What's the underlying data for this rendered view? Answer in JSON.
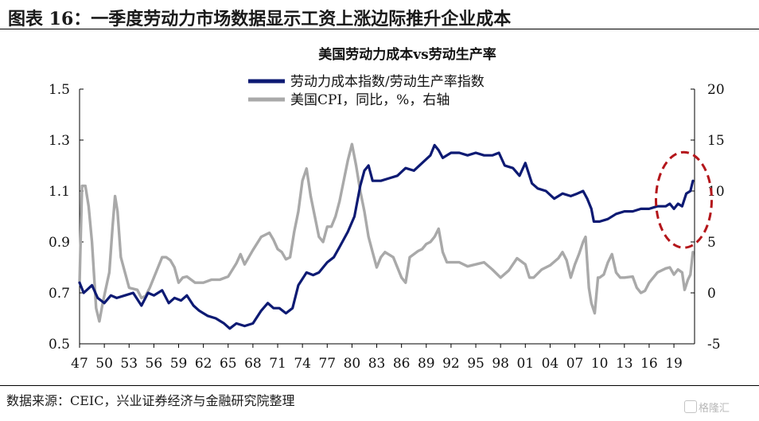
{
  "figure_title": "图表 16：一季度劳动力市场数据显示工资上涨边际推升企业成本",
  "source": "数据来源：CEIC，兴业证券经济与金融研究院整理",
  "watermark": "格隆汇",
  "colors": {
    "series1": "#0d1a73",
    "series2": "#a9a9a9",
    "highlight": "#b4161b"
  },
  "chart_data": {
    "type": "line",
    "title": "美国劳动力成本vs劳动生产率",
    "y_left": {
      "min": 0.5,
      "max": 1.5,
      "ticks": [
        "0.5",
        "0.7",
        "0.9",
        "1.1",
        "1.3",
        "1.5"
      ]
    },
    "y_right": {
      "min": -5,
      "max": 20,
      "ticks": [
        "-5",
        "0",
        "5",
        "10",
        "15",
        "20"
      ]
    },
    "x_range": [
      1947,
      2021.5
    ],
    "x_ticks": [
      {
        "year": 1947,
        "label": "47"
      },
      {
        "year": 1950,
        "label": "50"
      },
      {
        "year": 1953,
        "label": "53"
      },
      {
        "year": 1956,
        "label": "56"
      },
      {
        "year": 1959,
        "label": "59"
      },
      {
        "year": 1962,
        "label": "62"
      },
      {
        "year": 1965,
        "label": "65"
      },
      {
        "year": 1968,
        "label": "68"
      },
      {
        "year": 1971,
        "label": "71"
      },
      {
        "year": 1974,
        "label": "74"
      },
      {
        "year": 1977,
        "label": "77"
      },
      {
        "year": 1980,
        "label": "80"
      },
      {
        "year": 1983,
        "label": "83"
      },
      {
        "year": 1986,
        "label": "86"
      },
      {
        "year": 1989,
        "label": "89"
      },
      {
        "year": 1992,
        "label": "92"
      },
      {
        "year": 1995,
        "label": "95"
      },
      {
        "year": 1998,
        "label": "98"
      },
      {
        "year": 2001,
        "label": "01"
      },
      {
        "year": 2004,
        "label": "04"
      },
      {
        "year": 2007,
        "label": "07"
      },
      {
        "year": 2010,
        "label": "10"
      },
      {
        "year": 2013,
        "label": "13"
      },
      {
        "year": 2016,
        "label": "16"
      },
      {
        "year": 2019,
        "label": "19"
      }
    ],
    "legend_placement": "top-center",
    "series": [
      {
        "name": "劳动力成本指数/劳动生产率指数",
        "axis": "left",
        "x": [
          1947,
          1947.5,
          1948.5,
          1949.2,
          1950,
          1950.8,
          1951.5,
          1952.5,
          1953.5,
          1954.5,
          1955.3,
          1956,
          1957,
          1957.8,
          1958.5,
          1959.3,
          1960,
          1960.8,
          1961.5,
          1962.5,
          1963.5,
          1964.5,
          1965.2,
          1966,
          1967,
          1968,
          1969,
          1969.8,
          1970.5,
          1971.2,
          1972,
          1972.8,
          1973.5,
          1974.5,
          1975.3,
          1976,
          1977,
          1977.8,
          1978.5,
          1979.5,
          1980.3,
          1981,
          1981.5,
          1982,
          1982.5,
          1983.5,
          1984.5,
          1985.5,
          1986.5,
          1987.5,
          1988.5,
          1989.5,
          1990,
          1990.5,
          1991,
          1992,
          1993,
          1994,
          1995,
          1996,
          1997,
          1997.8,
          1998.5,
          1999.5,
          2000.3,
          2001,
          2001.8,
          2002.5,
          2003.5,
          2004.5,
          2005.5,
          2006.5,
          2007.3,
          2008,
          2008.5,
          2009,
          2009.3,
          2010,
          2011,
          2012,
          2013,
          2014,
          2015,
          2016,
          2017,
          2018,
          2018.5,
          2019,
          2019.5,
          2020,
          2020.5,
          2021,
          2021.3
        ],
        "y": [
          0.74,
          0.7,
          0.73,
          0.68,
          0.66,
          0.69,
          0.68,
          0.69,
          0.7,
          0.65,
          0.7,
          0.69,
          0.71,
          0.66,
          0.68,
          0.67,
          0.69,
          0.65,
          0.63,
          0.61,
          0.6,
          0.58,
          0.56,
          0.58,
          0.57,
          0.58,
          0.63,
          0.66,
          0.64,
          0.64,
          0.62,
          0.64,
          0.73,
          0.78,
          0.77,
          0.78,
          0.82,
          0.84,
          0.88,
          0.94,
          1.0,
          1.12,
          1.18,
          1.2,
          1.14,
          1.14,
          1.15,
          1.16,
          1.19,
          1.18,
          1.21,
          1.24,
          1.28,
          1.26,
          1.23,
          1.25,
          1.25,
          1.24,
          1.25,
          1.24,
          1.24,
          1.25,
          1.2,
          1.19,
          1.16,
          1.21,
          1.13,
          1.11,
          1.1,
          1.07,
          1.09,
          1.08,
          1.09,
          1.1,
          1.07,
          1.03,
          0.98,
          0.98,
          0.99,
          1.01,
          1.02,
          1.02,
          1.03,
          1.03,
          1.04,
          1.04,
          1.05,
          1.03,
          1.05,
          1.04,
          1.09,
          1.1,
          1.14
        ]
      },
      {
        "name": "美国CPI，同比，%，右轴",
        "axis": "right",
        "x": [
          1947,
          1947.3,
          1947.7,
          1948.1,
          1948.5,
          1949,
          1949.4,
          1949.8,
          1950.2,
          1950.6,
          1951,
          1951.3,
          1951.6,
          1952,
          1952.5,
          1953,
          1954,
          1954.5,
          1955,
          1955.5,
          1956,
          1956.5,
          1957,
          1957.5,
          1958,
          1958.5,
          1959,
          1959.5,
          1960,
          1961,
          1962,
          1963,
          1964,
          1965,
          1966,
          1966.5,
          1967,
          1968,
          1969,
          1970,
          1970.5,
          1971,
          1971.5,
          1972,
          1972.5,
          1973,
          1973.5,
          1974,
          1974.5,
          1975,
          1975.5,
          1976,
          1976.5,
          1977,
          1977.5,
          1978,
          1978.5,
          1979,
          1979.5,
          1980,
          1980.5,
          1981,
          1981.5,
          1982,
          1982.5,
          1983,
          1983.5,
          1984,
          1985,
          1986,
          1986.5,
          1987,
          1988,
          1988.5,
          1989,
          1989.5,
          1990,
          1990.5,
          1991,
          1991.5,
          1992,
          1993,
          1994,
          1995,
          1996,
          1997,
          1998,
          1999,
          2000,
          2001,
          2001.5,
          2002,
          2003,
          2004,
          2005,
          2005.5,
          2006,
          2006.5,
          2007,
          2007.5,
          2008,
          2008.3,
          2008.7,
          2009,
          2009.4,
          2009.8,
          2010,
          2010.5,
          2011,
          2011.5,
          2012,
          2012.5,
          2013,
          2014,
          2014.5,
          2015,
          2015.5,
          2016,
          2016.5,
          2017,
          2018,
          2018.5,
          2019,
          2019.5,
          2020,
          2020.3,
          2020.7,
          2021,
          2021.3
        ],
        "y": [
          1.0,
          10.5,
          10.5,
          8.5,
          5.0,
          -1.5,
          -2.8,
          -1.0,
          0.5,
          2.0,
          6.5,
          9.5,
          8.0,
          3.5,
          2.0,
          0.5,
          0.3,
          -0.5,
          -0.3,
          0.5,
          1.5,
          2.5,
          3.5,
          3.5,
          3.2,
          2.5,
          1.0,
          1.5,
          1.6,
          1.0,
          1.0,
          1.3,
          1.3,
          1.6,
          2.9,
          3.8,
          2.8,
          4.2,
          5.5,
          5.9,
          5.2,
          4.3,
          4.0,
          3.3,
          3.5,
          6.0,
          8.0,
          11.0,
          12.2,
          9.5,
          7.5,
          5.5,
          5.0,
          6.5,
          6.5,
          7.5,
          9.0,
          11.0,
          13.0,
          14.6,
          12.5,
          10.0,
          8.0,
          5.5,
          4.0,
          2.5,
          3.5,
          4.0,
          3.5,
          1.5,
          1.0,
          3.5,
          4.1,
          4.3,
          4.8,
          5.0,
          5.5,
          6.3,
          4.0,
          3.0,
          3.0,
          3.0,
          2.6,
          2.8,
          3.0,
          2.3,
          1.5,
          2.2,
          3.4,
          2.8,
          1.5,
          1.5,
          2.3,
          2.7,
          3.4,
          4.0,
          3.2,
          1.5,
          2.8,
          3.8,
          5.0,
          5.5,
          0.5,
          -1.0,
          -2.0,
          1.5,
          1.5,
          1.8,
          3.0,
          3.8,
          2.0,
          1.5,
          1.5,
          1.6,
          0.5,
          0.0,
          0.2,
          1.0,
          1.5,
          2.0,
          2.4,
          2.5,
          1.8,
          2.3,
          2.0,
          0.3,
          1.3,
          1.8,
          4.0
        ]
      }
    ],
    "annotation": {
      "shape": "dashed-ellipse",
      "x_center": 2020.2,
      "y_center": 1.065,
      "color": "#b4161b"
    }
  }
}
